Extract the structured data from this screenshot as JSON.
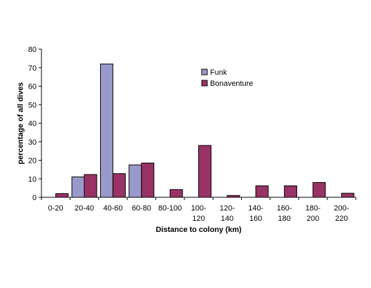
{
  "chart_data": {
    "type": "bar",
    "xlabel": "Distance to colony (km)",
    "ylabel": "percentage of all dives",
    "ylim": [
      0,
      80
    ],
    "yticks": [
      0,
      10,
      20,
      30,
      40,
      50,
      60,
      70,
      80
    ],
    "grid": false,
    "legend_position": "top-center",
    "categories": [
      [
        "0-20"
      ],
      [
        "20-40"
      ],
      [
        "40-60"
      ],
      [
        "60-80"
      ],
      [
        "80-100"
      ],
      [
        "100-",
        "120"
      ],
      [
        "120-",
        "140"
      ],
      [
        "140-",
        "160"
      ],
      [
        "160-",
        "180"
      ],
      [
        "180-",
        "200"
      ],
      [
        "200-",
        "220"
      ]
    ],
    "series": [
      {
        "name": "Funk",
        "color": "#9999cc",
        "values": [
          null,
          11,
          72,
          17.5,
          null,
          null,
          null,
          null,
          null,
          null,
          null
        ]
      },
      {
        "name": "Bonaventure",
        "color": "#993366",
        "values": [
          2,
          12.3,
          12.8,
          18.5,
          4.2,
          28,
          1,
          6.2,
          6.2,
          8,
          2.2
        ]
      }
    ]
  }
}
